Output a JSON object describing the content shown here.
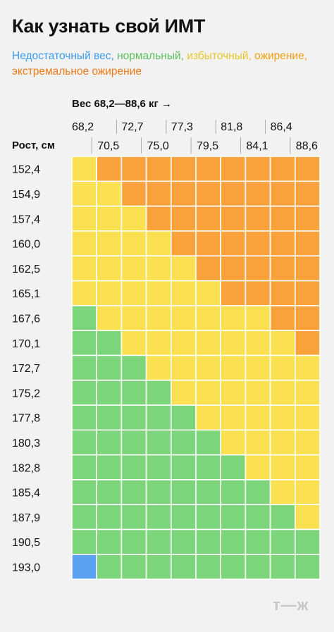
{
  "title": "Как узнать свой ИМТ",
  "legend": {
    "items": [
      {
        "label": "Недостаточный вес,",
        "color": "#3b9cf0"
      },
      {
        "label": "нормальный,",
        "color": "#5cc05c"
      },
      {
        "label": "избыточный,",
        "color": "#e6c72a"
      },
      {
        "label": "ожирение,",
        "color": "#f3a012"
      },
      {
        "label": "экстремальное ожирение",
        "color": "#ef7a16"
      }
    ]
  },
  "logo_text": "т—ж",
  "chart_data": {
    "type": "heatmap",
    "xlabel": "Вес 68,2—88,6 кг →",
    "ylabel": "Рост, см",
    "x_upper_labels": [
      "68,2",
      "72,7",
      "77,3",
      "81,8",
      "86,4"
    ],
    "x_lower_labels": [
      "70,5",
      "75,0",
      "79,5",
      "84,1",
      "88,6"
    ],
    "y_labels": [
      "152,4",
      "154,9",
      "157,4",
      "160,0",
      "162,5",
      "165,1",
      "167,6",
      "170,1",
      "172,7",
      "175,2",
      "177,8",
      "180,3",
      "182,8",
      "185,4",
      "187,9",
      "190,5",
      "193,0"
    ],
    "categories": [
      "Недостаточный вес",
      "нормальный",
      "избыточный",
      "ожирение"
    ],
    "colors": {
      "0": "#5aa2f0",
      "1": "#7cd57b",
      "2": "#fbe052",
      "3": "#f9a23c"
    },
    "grid": [
      [
        2,
        3,
        3,
        3,
        3,
        3,
        3,
        3,
        3,
        3
      ],
      [
        2,
        2,
        3,
        3,
        3,
        3,
        3,
        3,
        3,
        3
      ],
      [
        2,
        2,
        2,
        3,
        3,
        3,
        3,
        3,
        3,
        3
      ],
      [
        2,
        2,
        2,
        2,
        3,
        3,
        3,
        3,
        3,
        3
      ],
      [
        2,
        2,
        2,
        2,
        2,
        3,
        3,
        3,
        3,
        3
      ],
      [
        2,
        2,
        2,
        2,
        2,
        2,
        3,
        3,
        3,
        3
      ],
      [
        1,
        2,
        2,
        2,
        2,
        2,
        2,
        2,
        3,
        3
      ],
      [
        1,
        1,
        2,
        2,
        2,
        2,
        2,
        2,
        2,
        3
      ],
      [
        1,
        1,
        1,
        2,
        2,
        2,
        2,
        2,
        2,
        2
      ],
      [
        1,
        1,
        1,
        1,
        2,
        2,
        2,
        2,
        2,
        2
      ],
      [
        1,
        1,
        1,
        1,
        1,
        2,
        2,
        2,
        2,
        2
      ],
      [
        1,
        1,
        1,
        1,
        1,
        1,
        2,
        2,
        2,
        2
      ],
      [
        1,
        1,
        1,
        1,
        1,
        1,
        1,
        2,
        2,
        2
      ],
      [
        1,
        1,
        1,
        1,
        1,
        1,
        1,
        1,
        2,
        2
      ],
      [
        1,
        1,
        1,
        1,
        1,
        1,
        1,
        1,
        1,
        2
      ],
      [
        1,
        1,
        1,
        1,
        1,
        1,
        1,
        1,
        1,
        1
      ],
      [
        0,
        1,
        1,
        1,
        1,
        1,
        1,
        1,
        1,
        1
      ]
    ]
  }
}
